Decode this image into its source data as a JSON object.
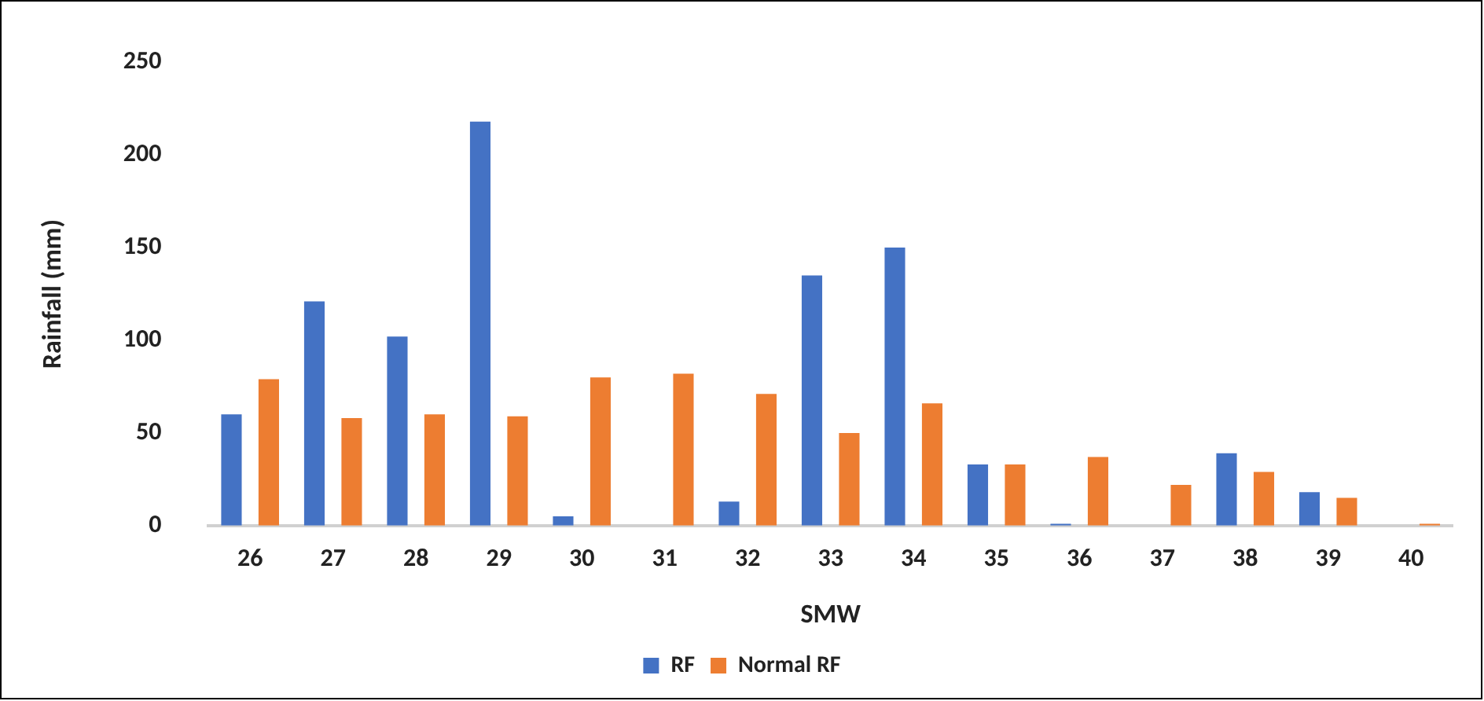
{
  "chart_data": {
    "type": "bar",
    "xlabel": "SMW",
    "ylabel": "Rainfall (mm)",
    "categories": [
      "26",
      "27",
      "28",
      "29",
      "30",
      "31",
      "32",
      "33",
      "34",
      "35",
      "36",
      "37",
      "38",
      "39",
      "40"
    ],
    "series": [
      {
        "name": "RF",
        "color": "#4472c4",
        "values": [
          60,
          121,
          102,
          218,
          5,
          0,
          13,
          135,
          150,
          33,
          1,
          0,
          39,
          18,
          0
        ]
      },
      {
        "name": "Normal RF",
        "color": "#ed7d31",
        "values": [
          79,
          58,
          60,
          59,
          80,
          82,
          71,
          50,
          66,
          33,
          37,
          22,
          29,
          15,
          1
        ]
      }
    ],
    "ylim": [
      0,
      250
    ],
    "yticks": [
      0,
      50,
      100,
      150,
      200,
      250
    ],
    "grid": false,
    "legend": "bottom"
  }
}
